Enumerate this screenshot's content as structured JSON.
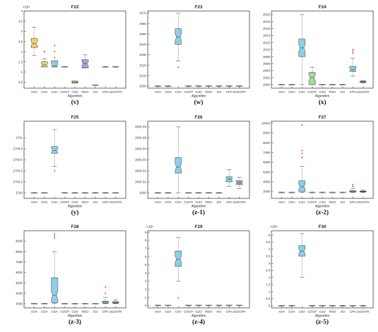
{
  "algorithms": [
    "AOA",
    "COA",
    "CSA",
    "COOT",
    "GJO",
    "RSO",
    "SO",
    "CPA",
    "UCDCPA"
  ],
  "xlabel": "Algorithm",
  "chart_data": [
    {
      "type": "box",
      "title": "F22",
      "caption": "(v)",
      "exponent": "×10⁴",
      "ylim": [
        0.2,
        4
      ],
      "yticks": [
        0.5,
        1,
        1.5,
        2,
        2.5,
        3,
        3.5,
        4
      ],
      "yticklabels": [
        "0.5",
        "1",
        "1.5",
        "2",
        "2.5",
        "3",
        "3.5",
        "4"
      ],
      "boxes": [
        {
          "q1": 2.2,
          "med": 2.4,
          "q3": 2.65,
          "lo": 1.8,
          "hi": 3.2,
          "outliers": [],
          "color": "#ecd06f"
        },
        {
          "q1": 1.25,
          "med": 1.35,
          "q3": 1.5,
          "lo": 1.25,
          "hi": 1.65,
          "outliers": [
            2.0,
            2.0
          ],
          "color": "#ecd06f"
        },
        {
          "q1": 1.25,
          "med": 1.3,
          "q3": 1.55,
          "lo": 1.25,
          "hi": 1.55,
          "outliers": [
            2.0,
            2.3,
            1.7
          ],
          "color": "#8ecfe8"
        },
        {
          "q1": 1.25,
          "med": 1.25,
          "q3": 1.25,
          "lo": 1.25,
          "hi": 1.25,
          "outliers": [],
          "color": "#bfbfbf"
        },
        {
          "q1": 0.45,
          "med": 0.5,
          "q3": 0.55,
          "lo": 0.45,
          "hi": 0.55,
          "outliers": [],
          "color": "#e8c070"
        },
        {
          "q1": 1.2,
          "med": 1.4,
          "q3": 1.6,
          "lo": 1.2,
          "hi": 1.85,
          "outliers": [],
          "color": "#a9a0e0"
        },
        {
          "q1": 0.35,
          "med": 0.35,
          "q3": 0.35,
          "lo": 0.35,
          "hi": 0.35,
          "outliers": [],
          "color": "#bfbfbf"
        },
        {
          "q1": 1.25,
          "med": 1.25,
          "q3": 1.25,
          "lo": 1.25,
          "hi": 1.25,
          "outliers": [],
          "color": "#bfbfbf"
        },
        {
          "q1": 1.25,
          "med": 1.25,
          "q3": 1.25,
          "lo": 1.25,
          "hi": 1.25,
          "outliers": [],
          "color": "#bfbfbf"
        }
      ]
    },
    {
      "type": "box",
      "title": "F23",
      "caption": "(w)",
      "exponent": "",
      "ylim": [
        2498,
        2572
      ],
      "yticks": [
        2500,
        2510,
        2520,
        2530,
        2540,
        2550,
        2560,
        2570
      ],
      "yticklabels": [
        "2500",
        "2510",
        "2520",
        "2530",
        "2540",
        "2550",
        "2560",
        "2570"
      ],
      "boxes": [
        {
          "q1": 2500,
          "med": 2500,
          "q3": 2500,
          "lo": 2500,
          "hi": 2500,
          "outliers": [],
          "color": "#bfbfbf"
        },
        {
          "q1": 2500,
          "med": 2500,
          "q3": 2500,
          "lo": 2500,
          "hi": 2500,
          "outliers": [],
          "color": "#bfbfbf"
        },
        {
          "q1": 2540,
          "med": 2547,
          "q3": 2555,
          "lo": 2524,
          "hi": 2570,
          "outliers": [
            2518
          ],
          "color": "#8ecfe8"
        },
        {
          "q1": 2500,
          "med": 2500,
          "q3": 2500,
          "lo": 2500,
          "hi": 2500,
          "outliers": [],
          "color": "#bfbfbf"
        },
        {
          "q1": 2500,
          "med": 2500,
          "q3": 2500,
          "lo": 2500,
          "hi": 2500,
          "outliers": [],
          "color": "#bfbfbf"
        },
        {
          "q1": 2500,
          "med": 2500,
          "q3": 2500,
          "lo": 2500,
          "hi": 2500,
          "outliers": [],
          "color": "#bfbfbf"
        },
        {
          "q1": 2500,
          "med": 2500,
          "q3": 2500,
          "lo": 2500,
          "hi": 2500,
          "outliers": [],
          "color": "#bfbfbf"
        },
        {
          "q1": 2500,
          "med": 2500,
          "q3": 2500,
          "lo": 2500,
          "hi": 2500,
          "outliers": [],
          "color": "#bfbfbf"
        },
        {
          "q1": 2500,
          "med": 2500,
          "q3": 2500,
          "lo": 2500,
          "hi": 2500,
          "outliers": [],
          "color": "#bfbfbf"
        }
      ]
    },
    {
      "type": "box",
      "title": "F24",
      "caption": "(x)",
      "exponent": "",
      "ylim": [
        2599,
        2621
      ],
      "yticks": [
        2600,
        2602,
        2604,
        2606,
        2608,
        2610,
        2612,
        2614,
        2616,
        2618,
        2620
      ],
      "yticklabels": [
        "2600",
        "2602",
        "2604",
        "2606",
        "2608",
        "2610",
        "2612",
        "2614",
        "2616",
        "2618",
        "2620"
      ],
      "boxes": [
        {
          "q1": 2600,
          "med": 2600,
          "q3": 2600,
          "lo": 2600,
          "hi": 2600,
          "outliers": [],
          "color": "#bfbfbf"
        },
        {
          "q1": 2600,
          "med": 2600,
          "q3": 2600,
          "lo": 2600,
          "hi": 2600,
          "outliers": [],
          "color": "#bfbfbf"
        },
        {
          "q1": 2608,
          "med": 2610.5,
          "q3": 2613,
          "lo": 2600,
          "hi": 2620,
          "outliers": [],
          "color": "#8ecfe8"
        },
        {
          "q1": 2600,
          "med": 2602,
          "q3": 2603.5,
          "lo": 2600,
          "hi": 2605,
          "outliers": [],
          "color": "#a3dca0"
        },
        {
          "q1": 2600,
          "med": 2600,
          "q3": 2600,
          "lo": 2600,
          "hi": 2600,
          "outliers": [],
          "color": "#bfbfbf"
        },
        {
          "q1": 2600,
          "med": 2600,
          "q3": 2600,
          "lo": 2600,
          "hi": 2600,
          "outliers": [],
          "color": "#bfbfbf"
        },
        {
          "q1": 2600,
          "med": 2600,
          "q3": 2600,
          "lo": 2600,
          "hi": 2600,
          "outliers": [],
          "color": "#bfbfbf"
        },
        {
          "q1": 2603.8,
          "med": 2604.3,
          "q3": 2605.2,
          "lo": 2602.5,
          "hi": 2607.5,
          "outliers": [
            2609,
            2609.6,
            2610
          ],
          "color": "#8ecfe8"
        },
        {
          "q1": 2600.6,
          "med": 2600.8,
          "q3": 2601,
          "lo": 2600.5,
          "hi": 2601.1,
          "outliers": [],
          "color": "#bfbfbf"
        }
      ]
    },
    {
      "type": "box",
      "title": "F25",
      "caption": "(y)",
      "exponent": "",
      "ylim": [
        2699.9,
        2701.3
      ],
      "yticks": [
        2700,
        2700.2,
        2700.4,
        2700.6,
        2700.8,
        2701
      ],
      "yticklabels": [
        "2700",
        "2700.2",
        "2700.4",
        "2700.6",
        "2700.8",
        "2701"
      ],
      "boxes": [
        {
          "q1": 2700,
          "med": 2700,
          "q3": 2700,
          "lo": 2700,
          "hi": 2700,
          "outliers": [],
          "color": "#bfbfbf"
        },
        {
          "q1": 2700,
          "med": 2700,
          "q3": 2700,
          "lo": 2700,
          "hi": 2700,
          "outliers": [],
          "color": "#bfbfbf"
        },
        {
          "q1": 2700.72,
          "med": 2700.77,
          "q3": 2700.84,
          "lo": 2700.48,
          "hi": 2701.15,
          "outliers": [
            2700.4
          ],
          "color": "#8ecfe8"
        },
        {
          "q1": 2700,
          "med": 2700,
          "q3": 2700,
          "lo": 2700,
          "hi": 2700,
          "outliers": [],
          "color": "#bfbfbf"
        },
        {
          "q1": 2700,
          "med": 2700,
          "q3": 2700,
          "lo": 2700,
          "hi": 2700,
          "outliers": [],
          "color": "#bfbfbf"
        },
        {
          "q1": 2700,
          "med": 2700,
          "q3": 2700,
          "lo": 2700,
          "hi": 2700,
          "outliers": [],
          "color": "#bfbfbf"
        },
        {
          "q1": 2700,
          "med": 2700,
          "q3": 2700,
          "lo": 2700,
          "hi": 2700,
          "outliers": [],
          "color": "#bfbfbf"
        },
        {
          "q1": 2700,
          "med": 2700,
          "q3": 2700,
          "lo": 2700,
          "hi": 2700,
          "outliers": [],
          "color": "#bfbfbf"
        },
        {
          "q1": 2700,
          "med": 2700,
          "q3": 2700,
          "lo": 2700,
          "hi": 2700,
          "outliers": [],
          "color": "#bfbfbf"
        }
      ]
    },
    {
      "type": "box",
      "title": "F26",
      "caption": "(z-1)",
      "exponent": "",
      "ylim": [
        2799.995,
        2800.065
      ],
      "yticks": [
        2800,
        2800.01,
        2800.02,
        2800.03,
        2800.04,
        2800.05,
        2800.06
      ],
      "yticklabels": [
        "2800",
        "2800.01",
        "2800.02",
        "2800.03",
        "2800.04",
        "2800.05",
        "2800.06"
      ],
      "boxes": [
        {
          "q1": 2800,
          "med": 2800,
          "q3": 2800,
          "lo": 2800,
          "hi": 2800,
          "outliers": [],
          "color": "#bfbfbf"
        },
        {
          "q1": 2800,
          "med": 2800,
          "q3": 2800,
          "lo": 2800,
          "hi": 2800,
          "outliers": [],
          "color": "#bfbfbf"
        },
        {
          "q1": 2800.018,
          "med": 2800.0235,
          "q3": 2800.032,
          "lo": 2800,
          "hi": 2800.06,
          "outliers": [],
          "color": "#8ecfe8"
        },
        {
          "q1": 2800,
          "med": 2800,
          "q3": 2800,
          "lo": 2800,
          "hi": 2800,
          "outliers": [],
          "color": "#bfbfbf"
        },
        {
          "q1": 2800,
          "med": 2800,
          "q3": 2800,
          "lo": 2800,
          "hi": 2800,
          "outliers": [],
          "color": "#bfbfbf"
        },
        {
          "q1": 2800,
          "med": 2800,
          "q3": 2800,
          "lo": 2800,
          "hi": 2800,
          "outliers": [],
          "color": "#bfbfbf"
        },
        {
          "q1": 2800,
          "med": 2800,
          "q3": 2800,
          "lo": 2800,
          "hi": 2800,
          "outliers": [],
          "color": "#bfbfbf"
        },
        {
          "q1": 2800.01,
          "med": 2800.0125,
          "q3": 2800.0145,
          "lo": 2800.006,
          "hi": 2800.021,
          "outliers": [],
          "color": "#7fd8c8"
        },
        {
          "q1": 2800.0075,
          "med": 2800.009,
          "q3": 2800.011,
          "lo": 2800.004,
          "hi": 2800.014,
          "outliers": [],
          "color": "#a9a0e0"
        }
      ]
    },
    {
      "type": "box",
      "title": "F27",
      "caption": "(z-2)",
      "exponent": "",
      "ylim": [
        2300,
        10200
      ],
      "yticks": [
        3000,
        4000,
        5000,
        6000,
        7000,
        8000,
        9000,
        10000
      ],
      "yticklabels": [
        "3000",
        "4000",
        "5000",
        "6000",
        "7000",
        "8000",
        "9000",
        "10000"
      ],
      "boxes": [
        {
          "q1": 2900,
          "med": 2900,
          "q3": 2900,
          "lo": 2900,
          "hi": 2900,
          "outliers": [],
          "color": "#bfbfbf"
        },
        {
          "q1": 2900,
          "med": 2900,
          "q3": 2900,
          "lo": 2900,
          "hi": 2900,
          "outliers": [],
          "color": "#bfbfbf"
        },
        {
          "q1": 3000,
          "med": 3500,
          "q3": 4100,
          "lo": 2900,
          "hi": 5600,
          "outliers": [
            6500,
            6900,
            7200,
            9800
          ],
          "color": "#8ecfe8"
        },
        {
          "q1": 2900,
          "med": 2900,
          "q3": 2900,
          "lo": 2900,
          "hi": 2900,
          "outliers": [],
          "color": "#bfbfbf"
        },
        {
          "q1": 2900,
          "med": 2900,
          "q3": 2900,
          "lo": 2900,
          "hi": 2900,
          "outliers": [],
          "color": "#bfbfbf"
        },
        {
          "q1": 2900,
          "med": 2900,
          "q3": 2900,
          "lo": 2900,
          "hi": 2900,
          "outliers": [],
          "color": "#bfbfbf"
        },
        {
          "q1": 2900,
          "med": 2900,
          "q3": 2900,
          "lo": 2900,
          "hi": 2900,
          "outliers": [],
          "color": "#bfbfbf"
        },
        {
          "q1": 2950,
          "med": 3000,
          "q3": 3100,
          "lo": 2900,
          "hi": 3300,
          "outliers": [
            3500,
            3700
          ],
          "color": "#8ecfe8"
        },
        {
          "q1": 2950,
          "med": 3000,
          "q3": 3050,
          "lo": 2900,
          "hi": 3150,
          "outliers": [],
          "color": "#a9a0e0"
        }
      ]
    },
    {
      "type": "box",
      "title": "F28",
      "caption": "(z-3)",
      "exponent": "",
      "ylim": [
        2600,
        10000
      ],
      "yticks": [
        3000,
        4000,
        5000,
        6000,
        7000,
        8000,
        9000
      ],
      "yticklabels": [
        "3000",
        "4000",
        "5000",
        "6000",
        "7000",
        "8000",
        "9000"
      ],
      "boxes": [
        {
          "q1": 3000,
          "med": 3000,
          "q3": 3000,
          "lo": 3000,
          "hi": 3000,
          "outliers": [],
          "color": "#bfbfbf"
        },
        {
          "q1": 3000,
          "med": 3000,
          "q3": 3000,
          "lo": 3000,
          "hi": 3000,
          "outliers": [],
          "color": "#bfbfbf"
        },
        {
          "q1": 3100,
          "med": 3800,
          "q3": 5500,
          "lo": 3000,
          "hi": 8000,
          "outliers": [
            9300,
            9500,
            9700
          ],
          "color": "#8ecfe8"
        },
        {
          "q1": 3000,
          "med": 3000,
          "q3": 3000,
          "lo": 3000,
          "hi": 3000,
          "outliers": [],
          "color": "#bfbfbf"
        },
        {
          "q1": 3000,
          "med": 3000,
          "q3": 3000,
          "lo": 3000,
          "hi": 3000,
          "outliers": [],
          "color": "#bfbfbf"
        },
        {
          "q1": 3000,
          "med": 3000,
          "q3": 3000,
          "lo": 3000,
          "hi": 3000,
          "outliers": [],
          "color": "#bfbfbf"
        },
        {
          "q1": 3000,
          "med": 3000,
          "q3": 3000,
          "lo": 3000,
          "hi": 3000,
          "outliers": [],
          "color": "#bfbfbf"
        },
        {
          "q1": 3050,
          "med": 3150,
          "q3": 3250,
          "lo": 3000,
          "hi": 3600,
          "outliers": [
            4000,
            4600
          ],
          "color": "#8ecfe8"
        },
        {
          "q1": 3050,
          "med": 3100,
          "q3": 3200,
          "lo": 3000,
          "hi": 3350,
          "outliers": [],
          "color": "#a9a0e0"
        }
      ]
    },
    {
      "type": "box",
      "title": "F29",
      "caption": "(z-4)",
      "exponent": "×10⁷",
      "ylim": [
        -0.3,
        9.2
      ],
      "yticks": [
        0,
        1,
        2,
        3,
        4,
        5,
        6,
        7,
        8,
        9
      ],
      "yticklabels": [
        "0",
        "1",
        "2",
        "3",
        "4",
        "5",
        "6",
        "7",
        "8",
        "9"
      ],
      "boxes": [
        {
          "q1": 0,
          "med": 0,
          "q3": 0,
          "lo": 0,
          "hi": 0,
          "outliers": [],
          "color": "#bfbfbf"
        },
        {
          "q1": 0,
          "med": 0,
          "q3": 0,
          "lo": 0,
          "hi": 0,
          "outliers": [],
          "color": "#bfbfbf"
        },
        {
          "q1": 4.8,
          "med": 5.7,
          "q3": 6.7,
          "lo": 3.0,
          "hi": 8.4,
          "outliers": [
            0.9
          ],
          "color": "#8ecfe8"
        },
        {
          "q1": 0,
          "med": 0,
          "q3": 0,
          "lo": 0,
          "hi": 0,
          "outliers": [],
          "color": "#bfbfbf"
        },
        {
          "q1": 0,
          "med": 0,
          "q3": 0,
          "lo": 0,
          "hi": 0,
          "outliers": [],
          "color": "#bfbfbf"
        },
        {
          "q1": 0,
          "med": 0,
          "q3": 0,
          "lo": 0,
          "hi": 0,
          "outliers": [],
          "color": "#bfbfbf"
        },
        {
          "q1": 0,
          "med": 0,
          "q3": 0,
          "lo": 0,
          "hi": 0,
          "outliers": [],
          "color": "#bfbfbf"
        },
        {
          "q1": 0,
          "med": 0,
          "q3": 0,
          "lo": 0,
          "hi": 0,
          "outliers": [],
          "color": "#bfbfbf"
        },
        {
          "q1": 0,
          "med": 0,
          "q3": 0,
          "lo": 0,
          "hi": 0,
          "outliers": [],
          "color": "#bfbfbf"
        }
      ]
    },
    {
      "type": "box",
      "title": "F30",
      "caption": "(z-5)",
      "exponent": "×10⁸",
      "ylim": [
        -0.15,
        5.3
      ],
      "yticks": [
        0,
        0.5,
        1,
        1.5,
        2,
        2.5,
        3,
        3.5,
        4,
        4.5,
        5
      ],
      "yticklabels": [
        "0",
        "0.5",
        "1",
        "1.5",
        "2",
        "2.5",
        "3",
        "3.5",
        "4",
        "4.5",
        "5"
      ],
      "boxes": [
        {
          "q1": 0,
          "med": 0,
          "q3": 0,
          "lo": 0,
          "hi": 0,
          "outliers": [],
          "color": "#bfbfbf"
        },
        {
          "q1": 0,
          "med": 0,
          "q3": 0,
          "lo": 0,
          "hi": 0,
          "outliers": [],
          "color": "#bfbfbf"
        },
        {
          "q1": 3.5,
          "med": 3.85,
          "q3": 4.25,
          "lo": 2.0,
          "hi": 5.1,
          "outliers": [],
          "color": "#8ecfe8"
        },
        {
          "q1": 0,
          "med": 0,
          "q3": 0,
          "lo": 0,
          "hi": 0,
          "outliers": [],
          "color": "#bfbfbf"
        },
        {
          "q1": 0,
          "med": 0,
          "q3": 0,
          "lo": 0,
          "hi": 0,
          "outliers": [],
          "color": "#bfbfbf"
        },
        {
          "q1": 0,
          "med": 0,
          "q3": 0,
          "lo": 0,
          "hi": 0,
          "outliers": [],
          "color": "#bfbfbf"
        },
        {
          "q1": 0,
          "med": 0,
          "q3": 0,
          "lo": 0,
          "hi": 0,
          "outliers": [],
          "color": "#bfbfbf"
        },
        {
          "q1": 0,
          "med": 0,
          "q3": 0,
          "lo": 0,
          "hi": 0,
          "outliers": [],
          "color": "#bfbfbf"
        },
        {
          "q1": 0,
          "med": 0,
          "q3": 0,
          "lo": 0,
          "hi": 0,
          "outliers": [],
          "color": "#bfbfbf"
        }
      ]
    }
  ]
}
